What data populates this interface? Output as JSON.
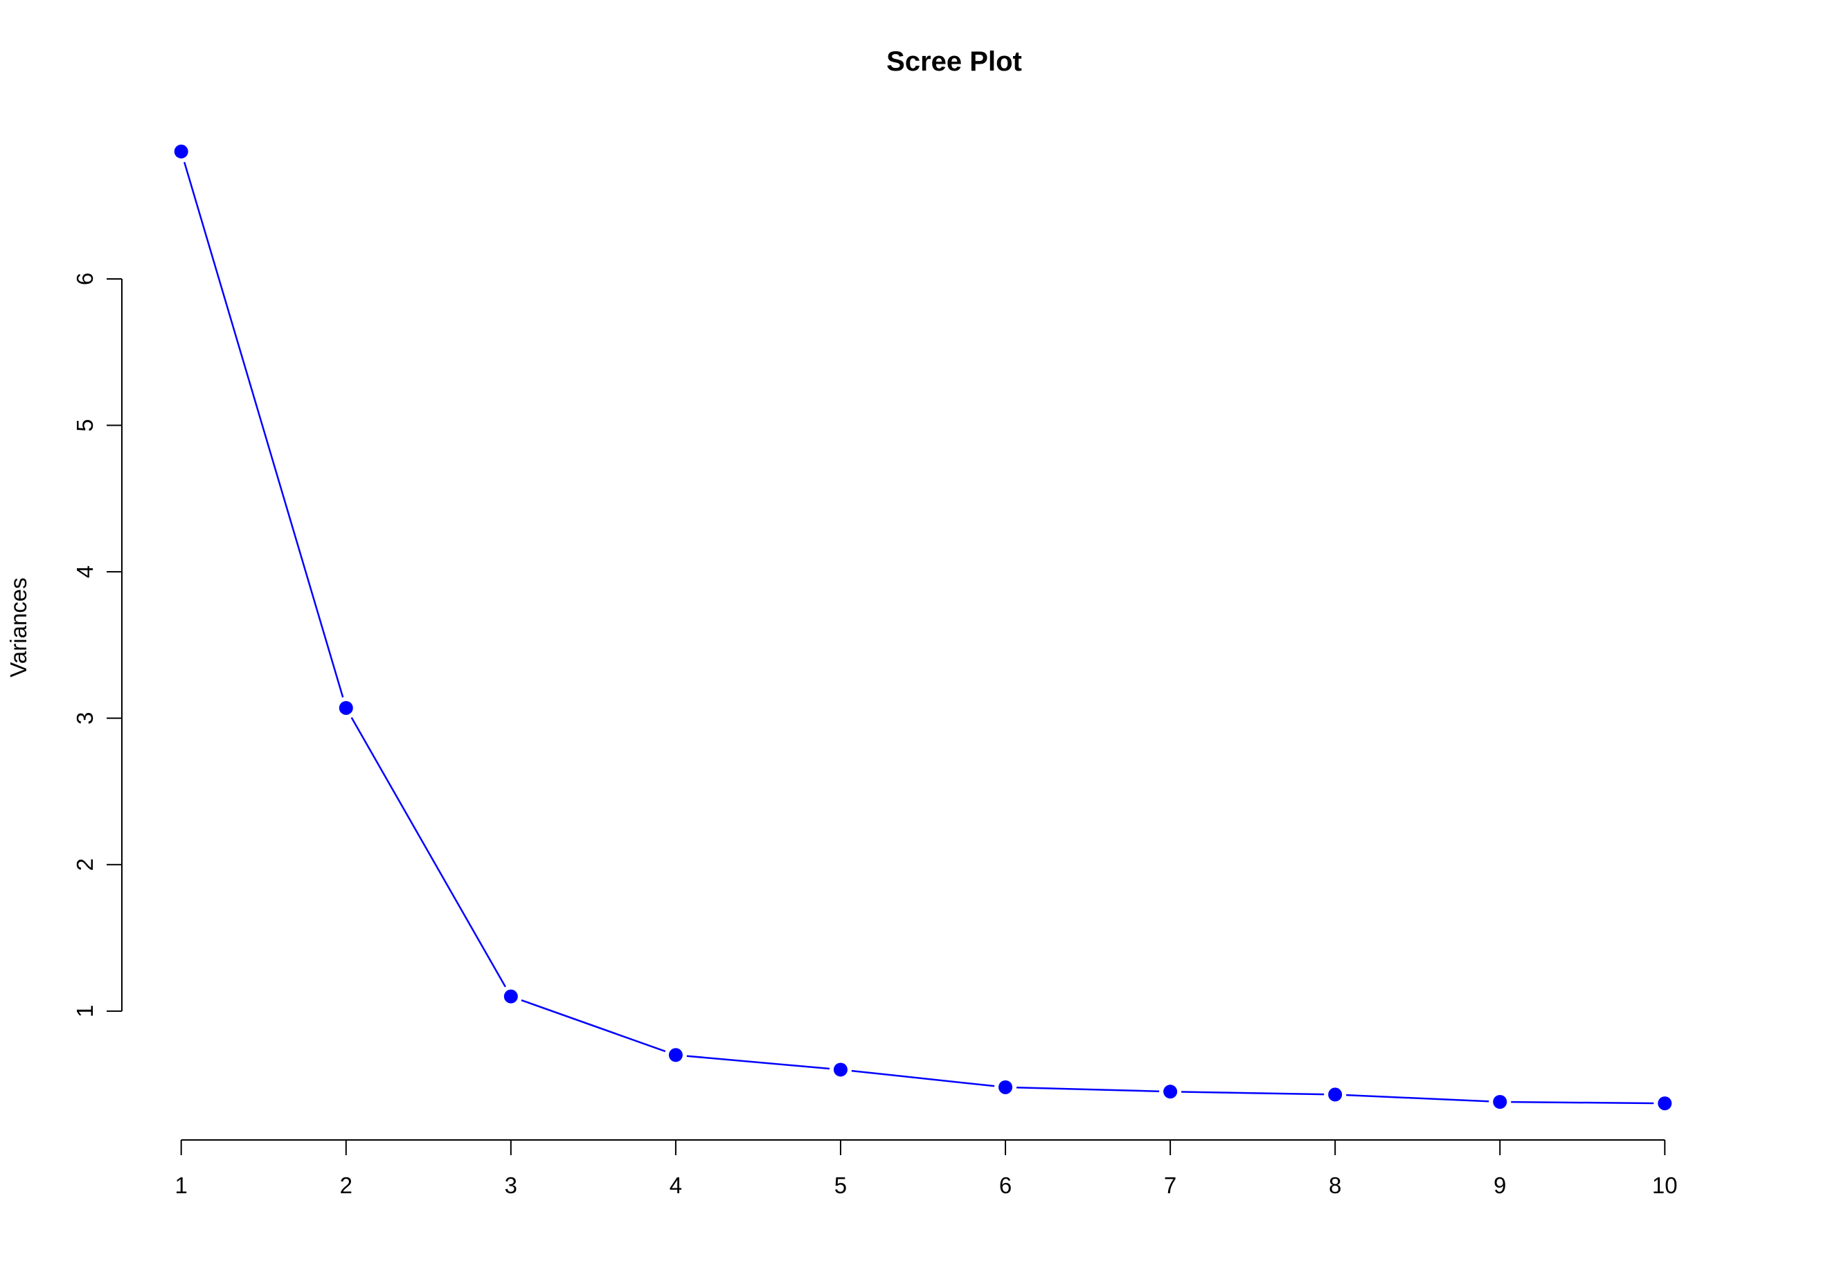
{
  "chart_data": {
    "type": "line",
    "title": "Scree Plot",
    "xlabel": "",
    "ylabel": "Variances",
    "x": [
      1,
      2,
      3,
      4,
      5,
      6,
      7,
      8,
      9,
      10
    ],
    "values": [
      6.87,
      3.07,
      1.1,
      0.7,
      0.6,
      0.48,
      0.45,
      0.43,
      0.38,
      0.37
    ],
    "xticks": [
      "1",
      "2",
      "3",
      "4",
      "5",
      "6",
      "7",
      "8",
      "9",
      "10"
    ],
    "yticks": [
      "1",
      "2",
      "3",
      "4",
      "5",
      "6"
    ],
    "xlim": [
      0.64,
      10.36
    ],
    "ylim": [
      0.12,
      7.12
    ],
    "grid": false,
    "legend": "none",
    "colors": {
      "line": "#0000ff",
      "point": "#0000ff"
    }
  }
}
